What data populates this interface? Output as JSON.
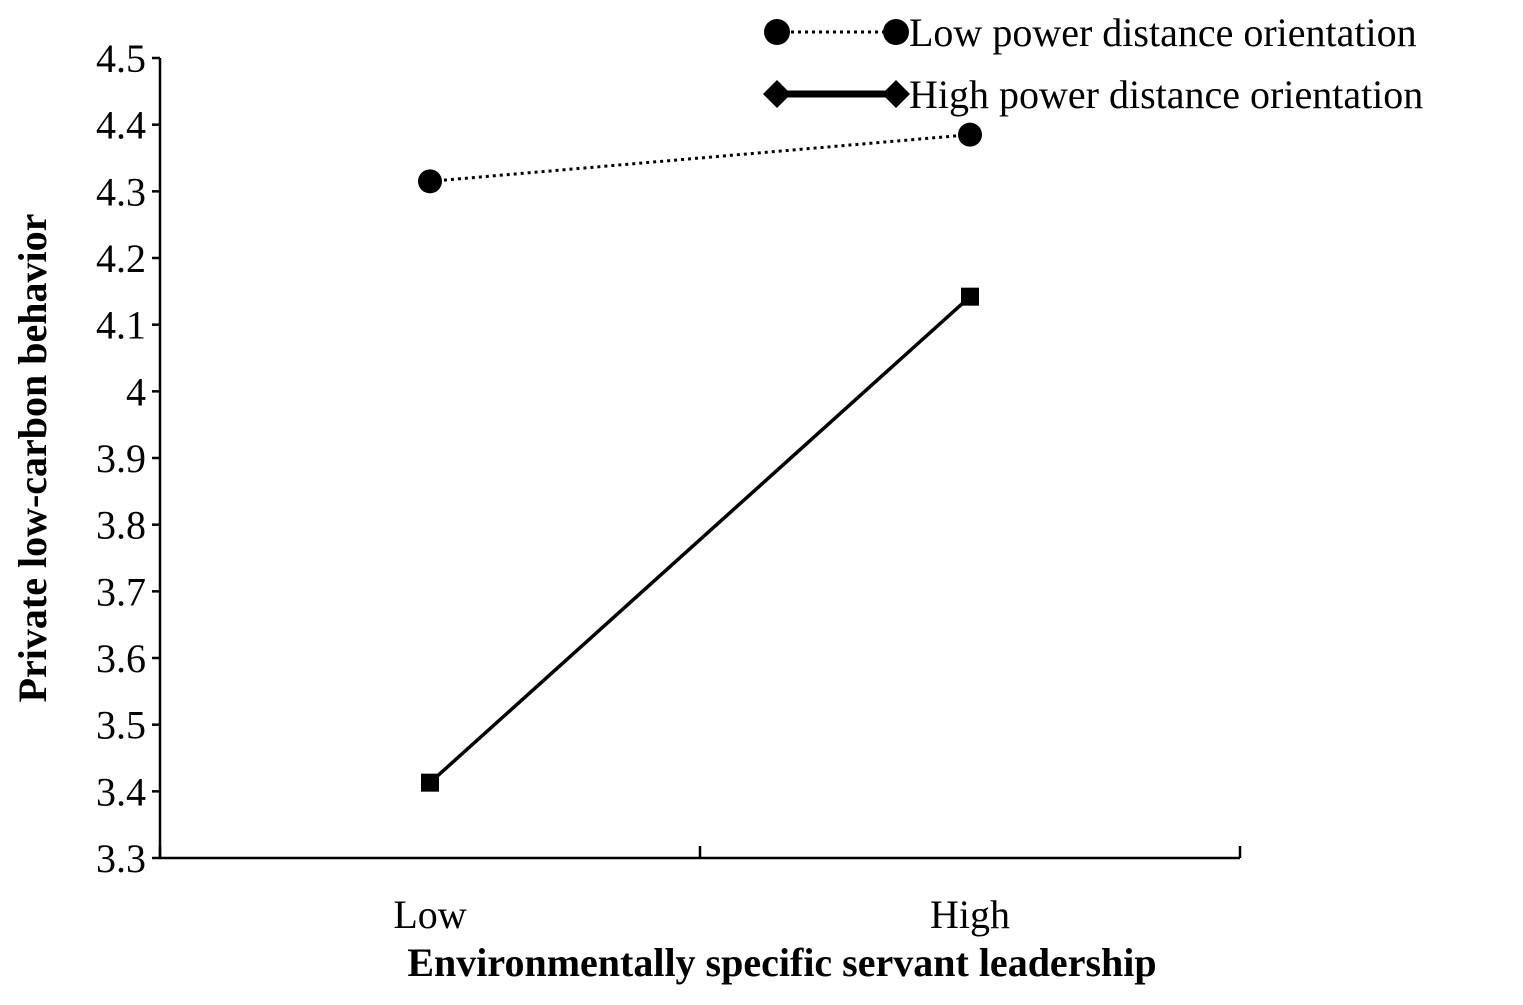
{
  "chart_data": {
    "type": "line",
    "title": "",
    "xlabel": "Environmentally specific servant leadership",
    "ylabel": "Private low-carbon behavior",
    "categories": [
      "Low",
      "High"
    ],
    "ylim": [
      3.3,
      4.5
    ],
    "yticks": [
      "3.3",
      "3.4",
      "3.5",
      "3.6",
      "3.7",
      "3.8",
      "3.9",
      "4",
      "4.1",
      "4.2",
      "4.3",
      "4.4",
      "4.5"
    ],
    "grid": false,
    "legend_position": "top-right",
    "series": [
      {
        "name": "Low power distance orientation",
        "values": [
          4.315,
          4.385
        ],
        "line_style": "dotted",
        "marker": "circle",
        "legend_marker": "circle",
        "color": "#000000"
      },
      {
        "name": "High power distance orientation",
        "values": [
          3.413,
          4.142
        ],
        "line_style": "solid",
        "marker": "square",
        "legend_marker": "diamond",
        "color": "#000000"
      }
    ]
  }
}
